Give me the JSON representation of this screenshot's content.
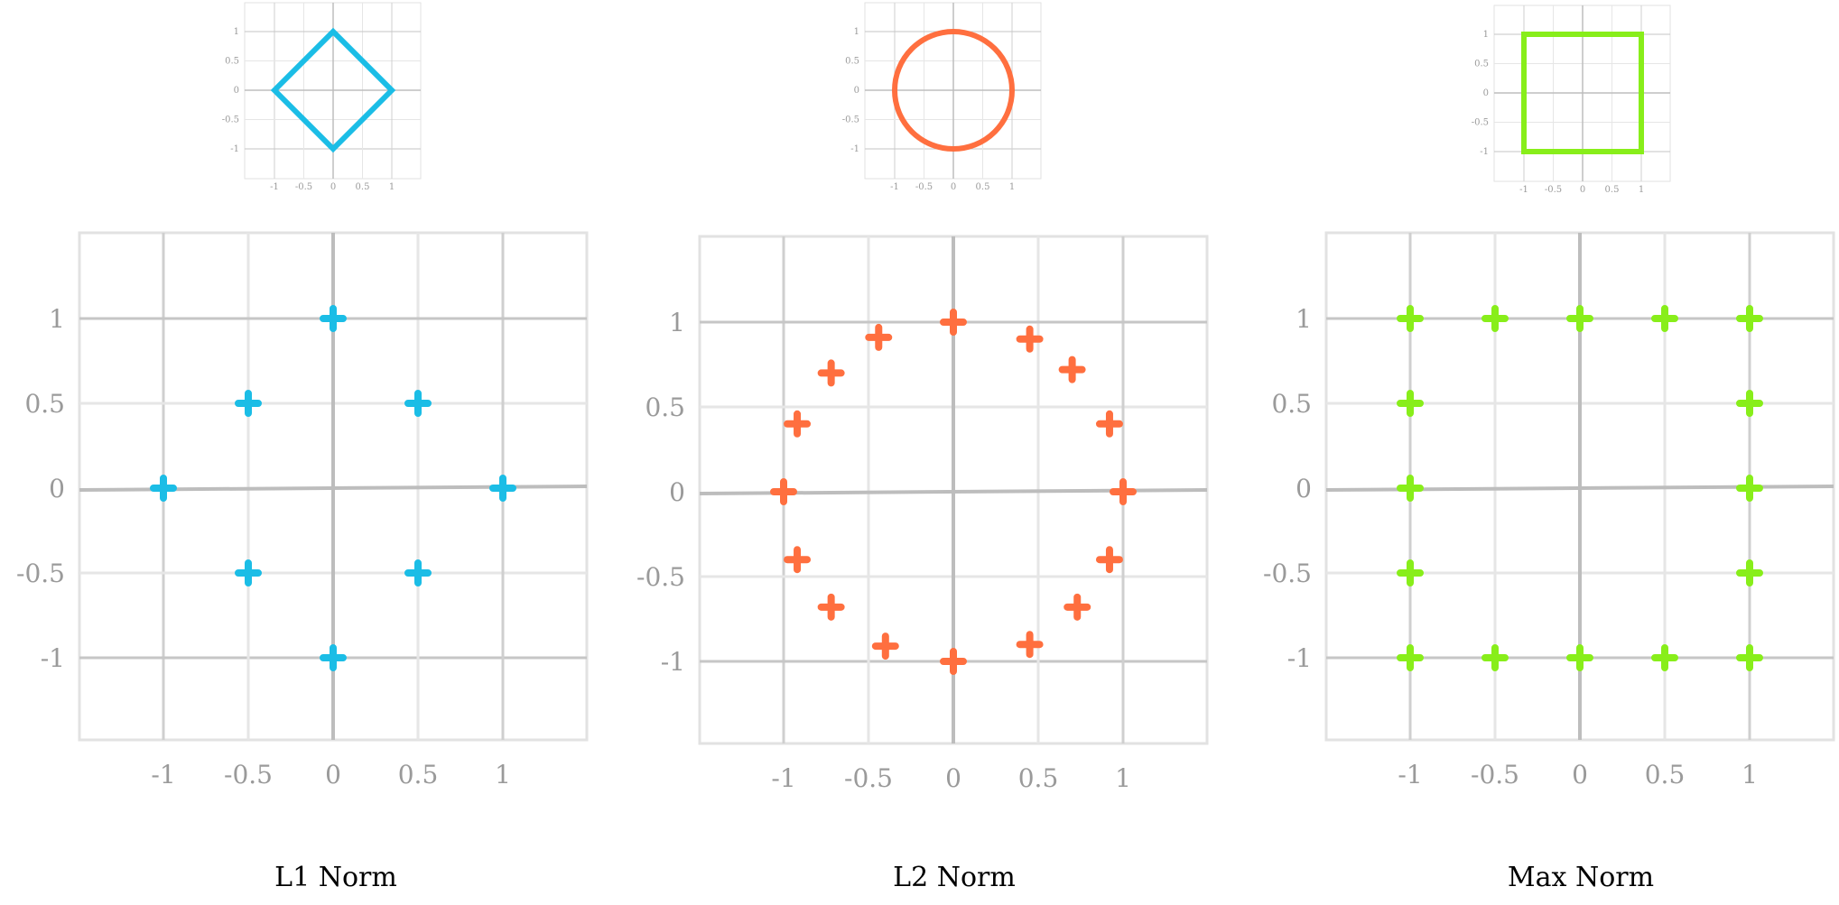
{
  "tick_labels": [
    "-1",
    "-0.5",
    "0",
    "0.5",
    "1"
  ],
  "panels": [
    {
      "id": "l1",
      "title": "L1 Norm",
      "color": "#1bbde6",
      "inset_shape": "diamond",
      "points": [
        [
          0,
          1
        ],
        [
          -0.5,
          0.5
        ],
        [
          0.5,
          0.5
        ],
        [
          -1,
          0
        ],
        [
          1,
          0
        ],
        [
          -0.5,
          -0.5
        ],
        [
          0.5,
          -0.5
        ],
        [
          0,
          -1
        ]
      ]
    },
    {
      "id": "l2",
      "title": "L2 Norm",
      "color": "#ff6f3f",
      "inset_shape": "circle",
      "points": [
        [
          0,
          1
        ],
        [
          -0.44,
          0.91
        ],
        [
          0.45,
          0.9
        ],
        [
          -0.72,
          0.7
        ],
        [
          0.7,
          0.72
        ],
        [
          -0.92,
          0.4
        ],
        [
          0.92,
          0.4
        ],
        [
          -1,
          0
        ],
        [
          1,
          0
        ],
        [
          -0.92,
          -0.4
        ],
        [
          0.92,
          -0.4
        ],
        [
          -0.72,
          -0.68
        ],
        [
          0.73,
          -0.68
        ],
        [
          -0.4,
          -0.91
        ],
        [
          0.45,
          -0.9
        ],
        [
          0,
          -1
        ]
      ]
    },
    {
      "id": "max",
      "title": "Max Norm",
      "color": "#88ee1a",
      "inset_shape": "square",
      "points": [
        [
          -1,
          1
        ],
        [
          -0.5,
          1
        ],
        [
          0,
          1
        ],
        [
          0.5,
          1
        ],
        [
          1,
          1
        ],
        [
          -1,
          0.5
        ],
        [
          1,
          0.5
        ],
        [
          -1,
          0
        ],
        [
          1,
          0
        ],
        [
          -1,
          -0.5
        ],
        [
          1,
          -0.5
        ],
        [
          -1,
          -1
        ],
        [
          -0.5,
          -1
        ],
        [
          0,
          -1
        ],
        [
          0.5,
          -1
        ],
        [
          1,
          -1
        ]
      ]
    }
  ]
}
